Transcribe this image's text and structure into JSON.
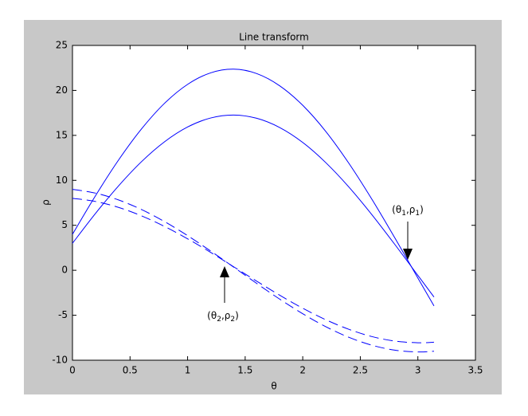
{
  "chart_data": {
    "type": "line",
    "title": "Line transform",
    "x_label": "θ",
    "y_label": "ρ",
    "x": [
      0,
      0.2,
      0.4,
      0.6,
      0.8,
      1.0,
      1.2,
      1.4,
      1.6,
      1.8,
      2.0,
      2.2,
      2.4,
      2.6,
      2.8,
      3.0,
      3.14
    ],
    "series": [
      {
        "color": "#0000ff",
        "style": "solid",
        "values": [
          4,
          8.29,
          12.25,
          15.72,
          18.57,
          20.67,
          21.95,
          22.36,
          21.87,
          20.51,
          18.34,
          15.44,
          11.91,
          7.91,
          3.6,
          -0.86,
          -3.96
        ]
      },
      {
        "color": "#0000ff",
        "style": "solid",
        "values": [
          3,
          6.32,
          9.38,
          12.08,
          14.29,
          15.93,
          16.93,
          17.26,
          16.9,
          15.87,
          14.21,
          11.97,
          9.27,
          6.19,
          2.87,
          -0.57,
          -2.97
        ]
      },
      {
        "color": "#0000ff",
        "style": "dashed",
        "values": [
          9,
          8.58,
          7.82,
          6.75,
          5.41,
          3.85,
          2.14,
          0.35,
          -1.46,
          -3.21,
          -4.83,
          -6.27,
          -7.45,
          -8.33,
          -8.88,
          -9.08,
          -9.0
        ]
      },
      {
        "color": "#0000ff",
        "style": "dashed",
        "values": [
          8,
          7.65,
          6.99,
          6.05,
          4.87,
          3.5,
          1.99,
          0.39,
          -1.21,
          -2.77,
          -4.22,
          -5.5,
          -6.56,
          -7.37,
          -7.87,
          -8.06,
          -8.0
        ]
      }
    ],
    "annotations": [
      "(θ1,ρ1)",
      "(θ2,ρ2)"
    ],
    "xlim": [
      0,
      3.5
    ],
    "xticks": [
      0,
      0.5,
      1,
      1.5,
      2,
      2.5,
      3,
      3.5
    ],
    "ylim": [
      -10,
      25
    ],
    "yticks": [
      -10,
      -5,
      0,
      5,
      10,
      15,
      20,
      25
    ],
    "grid": false
  }
}
